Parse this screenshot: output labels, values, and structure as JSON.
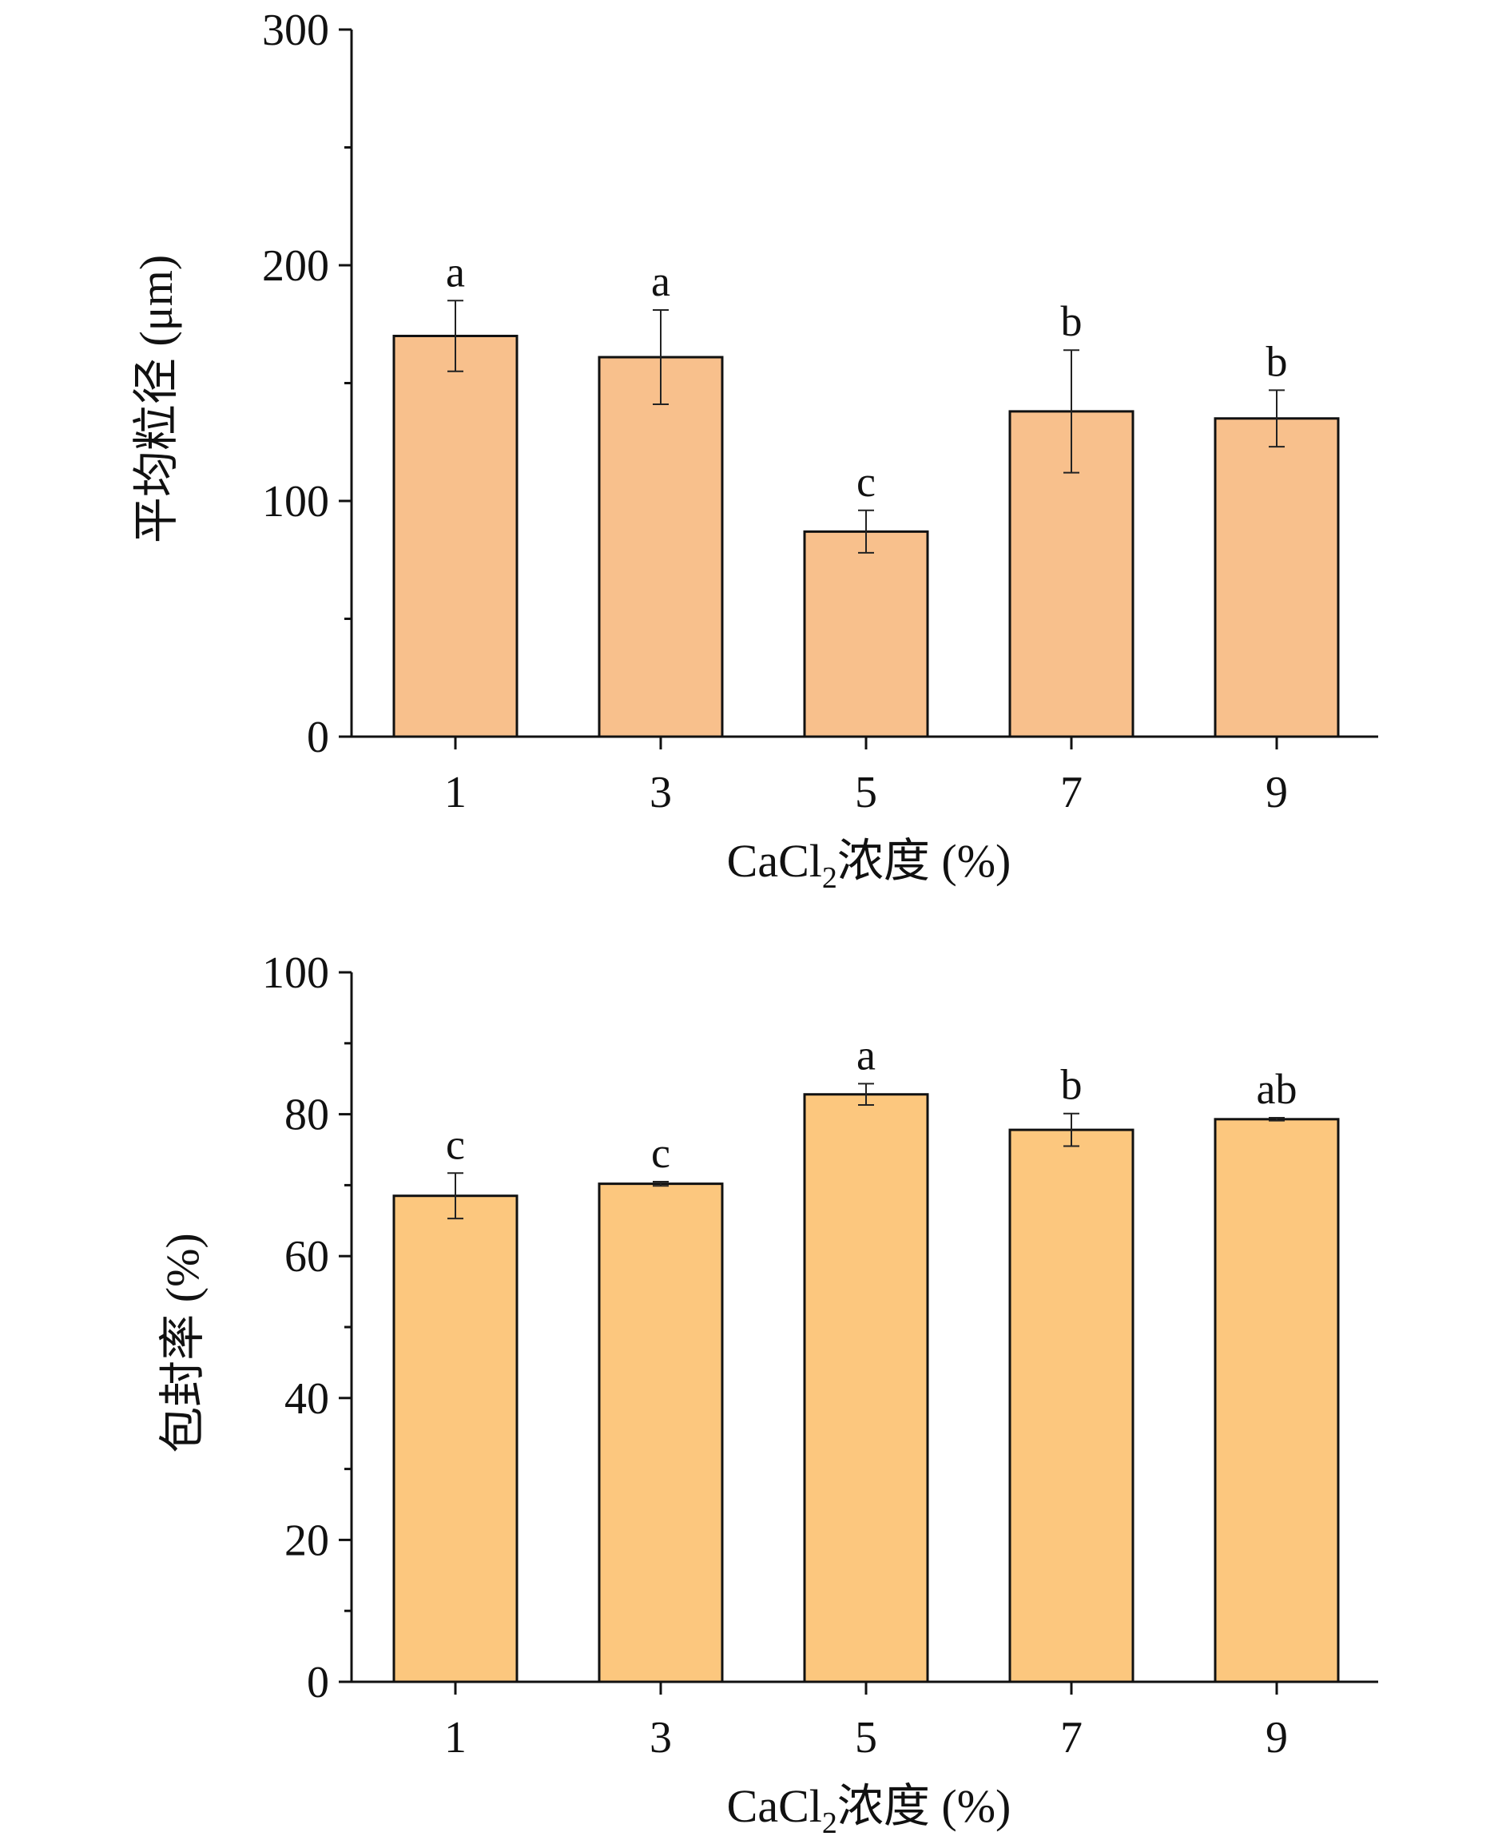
{
  "chart_data": [
    {
      "type": "bar",
      "categories": [
        "1",
        "3",
        "5",
        "7",
        "9"
      ],
      "values": [
        170,
        161,
        87,
        138,
        135
      ],
      "errors": [
        15,
        20,
        9,
        26,
        12
      ],
      "significance": [
        "a",
        "a",
        "c",
        "b",
        "b"
      ],
      "yticks": [
        "0",
        "100",
        "200",
        "300"
      ],
      "ylim": [
        0,
        300
      ],
      "ylabel": "平均粒径 (μm)",
      "xlabel": {
        "main": "CaCl",
        "sub": "2",
        "rest": "浓度 (%)"
      },
      "bar_color": "#f8c08c",
      "edge_color": "#111111"
    },
    {
      "type": "bar",
      "categories": [
        "1",
        "3",
        "5",
        "7",
        "9"
      ],
      "values": [
        68.5,
        70.2,
        82.8,
        77.8,
        79.3
      ],
      "errors": [
        3.2,
        0.3,
        1.5,
        2.3,
        0.2
      ],
      "significance": [
        "c",
        "c",
        "a",
        "b",
        "ab"
      ],
      "yticks": [
        "0",
        "20",
        "40",
        "60",
        "80",
        "100"
      ],
      "ylim": [
        0,
        100
      ],
      "ylabel": "包封率 (%)",
      "xlabel": {
        "main": "CaCl",
        "sub": "2",
        "rest": "浓度 (%)"
      },
      "bar_color": "#fcc77e",
      "edge_color": "#111111"
    }
  ]
}
